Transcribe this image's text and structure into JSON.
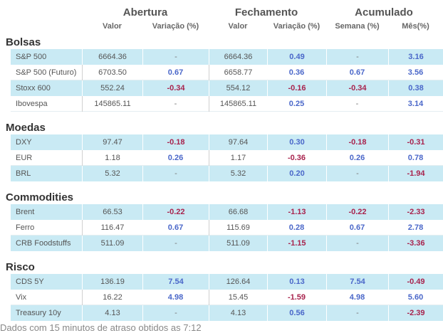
{
  "header": {
    "groups": [
      "Abertura",
      "Fechamento",
      "Acumulado"
    ],
    "columns": [
      "Valor",
      "Variação (%)",
      "Valor",
      "Variação (%)",
      "Semana (%)",
      "Mês(%)"
    ]
  },
  "sections": [
    {
      "title": "Bolsas",
      "rows": [
        {
          "name": "S&P 500",
          "cells": [
            "6664.36",
            "-",
            "6664.36",
            "0.49",
            "-",
            "3.16"
          ]
        },
        {
          "name": "S&P 500 (Futuro)",
          "cells": [
            "6703.50",
            "0.67",
            "6658.77",
            "0.36",
            "0.67",
            "3.56"
          ]
        },
        {
          "name": "Stoxx 600",
          "cells": [
            "552.24",
            "-0.34",
            "554.12",
            "-0.16",
            "-0.34",
            "0.38"
          ]
        },
        {
          "name": "Ibovespa",
          "cells": [
            "145865.11",
            "-",
            "145865.11",
            "0.25",
            "-",
            "3.14"
          ]
        }
      ]
    },
    {
      "title": "Moedas",
      "rows": [
        {
          "name": "DXY",
          "cells": [
            "97.47",
            "-0.18",
            "97.64",
            "0.30",
            "-0.18",
            "-0.31"
          ]
        },
        {
          "name": "EUR",
          "cells": [
            "1.18",
            "0.26",
            "1.17",
            "-0.36",
            "0.26",
            "0.78"
          ]
        },
        {
          "name": "BRL",
          "cells": [
            "5.32",
            "-",
            "5.32",
            "0.20",
            "-",
            "-1.94"
          ]
        }
      ]
    },
    {
      "title": "Commodities",
      "rows": [
        {
          "name": "Brent",
          "cells": [
            "66.53",
            "-0.22",
            "66.68",
            "-1.13",
            "-0.22",
            "-2.33"
          ]
        },
        {
          "name": "Ferro",
          "cells": [
            "116.47",
            "0.67",
            "115.69",
            "0.28",
            "0.67",
            "2.78"
          ]
        },
        {
          "name": "CRB Foodstuffs",
          "cells": [
            "511.09",
            "-",
            "511.09",
            "-1.15",
            "-",
            "-3.36"
          ]
        }
      ]
    },
    {
      "title": "Risco",
      "rows": [
        {
          "name": "CDS 5Y",
          "cells": [
            "136.19",
            "7.54",
            "126.64",
            "0.13",
            "7.54",
            "-0.49"
          ]
        },
        {
          "name": "Vix",
          "cells": [
            "16.22",
            "4.98",
            "15.45",
            "-1.59",
            "4.98",
            "5.60"
          ]
        },
        {
          "name": "Treasury 10y",
          "cells": [
            "4.13",
            "-",
            "4.13",
            "0.56",
            "-",
            "-2.39"
          ]
        }
      ]
    }
  ],
  "footnote": "Dados com 15 minutos de atraso obtidos as 7:12"
}
